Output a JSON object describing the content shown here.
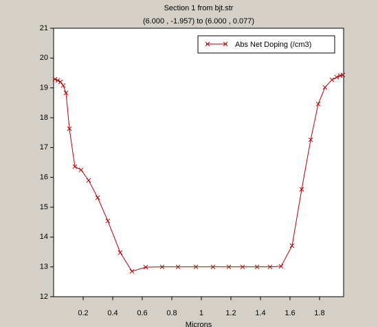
{
  "chart_data": {
    "type": "line",
    "title": "Section 1 from bjt.str",
    "subtitle": "(6.000 , -1.957) to (6.000 , 0.077)",
    "x_label": "Microns",
    "x": [
      0.009,
      0.028,
      0.047,
      0.065,
      0.084,
      0.107,
      0.144,
      0.186,
      0.237,
      0.298,
      0.367,
      0.451,
      0.53,
      0.623,
      0.735,
      0.842,
      0.963,
      1.079,
      1.186,
      1.279,
      1.377,
      1.465,
      1.54,
      1.614,
      1.679,
      1.74,
      1.791,
      1.837,
      1.884,
      1.916,
      1.94,
      1.958
    ],
    "series": [
      {
        "name": "Abs Net Doping (/cm3)",
        "color": "#b00000",
        "values": [
          19.29,
          19.25,
          19.2,
          19.08,
          18.83,
          17.63,
          16.36,
          16.25,
          15.9,
          15.32,
          14.54,
          13.48,
          12.85,
          12.99,
          13,
          13,
          13,
          13,
          13,
          13,
          13,
          13,
          13.02,
          13.71,
          15.6,
          17.26,
          18.46,
          19.02,
          19.27,
          19.36,
          19.41,
          19.43
        ]
      }
    ],
    "xlim": [
      0,
      1.963
    ],
    "xticks": [
      0.2,
      0.4,
      0.6,
      0.8,
      1,
      1.2,
      1.4,
      1.6,
      1.8
    ],
    "ylim": [
      12,
      21
    ],
    "yticks": [
      12,
      13,
      14,
      15,
      16,
      17,
      18,
      19,
      20,
      21
    ],
    "legend": "top-right"
  }
}
